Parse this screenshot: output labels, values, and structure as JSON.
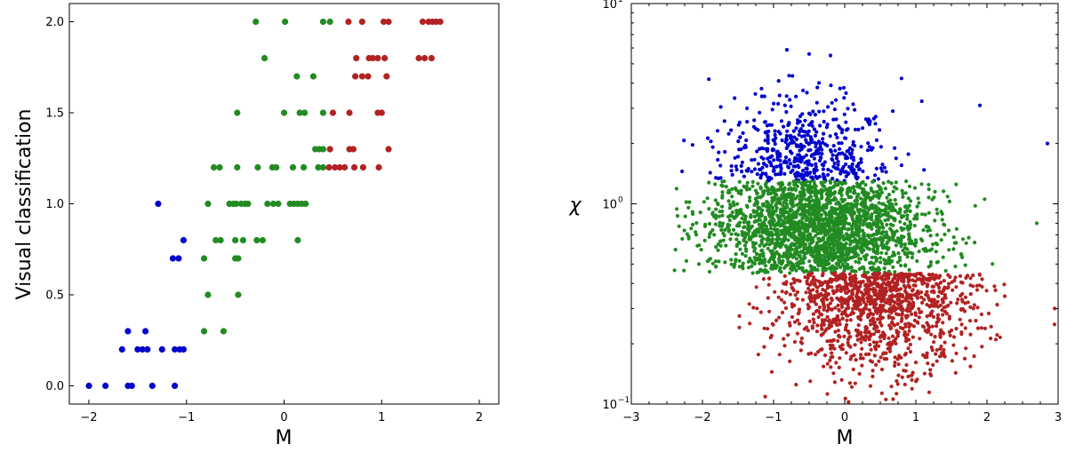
{
  "colors": {
    "blue": "#0000cc",
    "green": "#228b22",
    "red": "#b22222",
    "axes": "#000000",
    "background": "#ffffff"
  },
  "chart_data": [
    {
      "type": "scatter",
      "title": "",
      "xlabel": "M",
      "ylabel": "Visual classification",
      "xlim": [
        -2.2,
        2.2
      ],
      "ylim": [
        -0.1,
        2.1
      ],
      "xticks": [
        -2,
        -1,
        0,
        1,
        2
      ],
      "xtick_labels": [
        "−2",
        "−1",
        "0",
        "1",
        "2"
      ],
      "yticks": [
        0.0,
        0.5,
        1.0,
        1.5,
        2.0
      ],
      "ytick_labels": [
        "0.0",
        "0.5",
        "1.0",
        "1.5",
        "2.0"
      ],
      "grid": false,
      "legend": "none",
      "series": [
        {
          "color_key": "blue",
          "points": [
            [
              -2.0,
              0.0
            ],
            [
              -1.83,
              0.0
            ],
            [
              -1.6,
              0.0
            ],
            [
              -1.56,
              0.0
            ],
            [
              -1.35,
              0.0
            ],
            [
              -1.12,
              0.0
            ],
            [
              -1.66,
              0.2
            ],
            [
              -1.5,
              0.2
            ],
            [
              -1.45,
              0.2
            ],
            [
              -1.4,
              0.2
            ],
            [
              -1.25,
              0.2
            ],
            [
              -1.12,
              0.2
            ],
            [
              -1.07,
              0.2
            ],
            [
              -1.03,
              0.2
            ],
            [
              -1.6,
              0.3
            ],
            [
              -1.42,
              0.3
            ],
            [
              -1.14,
              0.7
            ],
            [
              -1.08,
              0.7
            ],
            [
              -1.03,
              0.8
            ],
            [
              -1.29,
              1.0
            ]
          ]
        },
        {
          "color_key": "green",
          "points": [
            [
              -0.82,
              0.3
            ],
            [
              -0.62,
              0.3
            ],
            [
              -0.78,
              0.5
            ],
            [
              -0.47,
              0.5
            ],
            [
              -0.82,
              0.7
            ],
            [
              -0.5,
              0.7
            ],
            [
              -0.47,
              0.7
            ],
            [
              -0.7,
              0.8
            ],
            [
              -0.65,
              0.8
            ],
            [
              -0.5,
              0.8
            ],
            [
              -0.42,
              0.8
            ],
            [
              -0.28,
              0.8
            ],
            [
              -0.22,
              0.8
            ],
            [
              0.14,
              0.8
            ],
            [
              -0.78,
              1.0
            ],
            [
              -0.56,
              1.0
            ],
            [
              -0.52,
              1.0
            ],
            [
              -0.49,
              1.0
            ],
            [
              -0.44,
              1.0
            ],
            [
              -0.4,
              1.0
            ],
            [
              -0.37,
              1.0
            ],
            [
              -0.17,
              1.0
            ],
            [
              -0.11,
              1.0
            ],
            [
              -0.06,
              1.0
            ],
            [
              0.06,
              1.0
            ],
            [
              0.1,
              1.0
            ],
            [
              0.14,
              1.0
            ],
            [
              0.18,
              1.0
            ],
            [
              0.22,
              1.0
            ],
            [
              -0.72,
              1.2
            ],
            [
              -0.66,
              1.2
            ],
            [
              -0.48,
              1.2
            ],
            [
              -0.27,
              1.2
            ],
            [
              -0.12,
              1.2
            ],
            [
              -0.08,
              1.2
            ],
            [
              0.09,
              1.2
            ],
            [
              0.2,
              1.2
            ],
            [
              0.35,
              1.2
            ],
            [
              0.4,
              1.2
            ],
            [
              0.32,
              1.3
            ],
            [
              0.36,
              1.3
            ],
            [
              0.4,
              1.3
            ],
            [
              -0.48,
              1.5
            ],
            [
              0.0,
              1.5
            ],
            [
              0.16,
              1.5
            ],
            [
              0.21,
              1.5
            ],
            [
              0.4,
              1.5
            ],
            [
              0.13,
              1.7
            ],
            [
              0.3,
              1.7
            ],
            [
              -0.2,
              1.8
            ],
            [
              -0.29,
              2.0
            ],
            [
              0.01,
              2.0
            ],
            [
              0.4,
              2.0
            ],
            [
              0.47,
              2.0
            ]
          ]
        },
        {
          "color_key": "red",
          "points": [
            [
              0.46,
              1.2
            ],
            [
              0.52,
              1.2
            ],
            [
              0.57,
              1.2
            ],
            [
              0.62,
              1.2
            ],
            [
              0.72,
              1.2
            ],
            [
              0.81,
              1.2
            ],
            [
              0.97,
              1.2
            ],
            [
              0.47,
              1.3
            ],
            [
              0.67,
              1.3
            ],
            [
              0.71,
              1.3
            ],
            [
              1.07,
              1.3
            ],
            [
              0.5,
              1.5
            ],
            [
              0.67,
              1.5
            ],
            [
              0.96,
              1.5
            ],
            [
              1.0,
              1.5
            ],
            [
              0.73,
              1.7
            ],
            [
              0.8,
              1.7
            ],
            [
              0.86,
              1.7
            ],
            [
              1.05,
              1.7
            ],
            [
              0.74,
              1.8
            ],
            [
              0.87,
              1.8
            ],
            [
              0.91,
              1.8
            ],
            [
              0.96,
              1.8
            ],
            [
              1.03,
              1.8
            ],
            [
              1.38,
              1.8
            ],
            [
              1.44,
              1.8
            ],
            [
              1.51,
              1.8
            ],
            [
              0.66,
              2.0
            ],
            [
              0.8,
              2.0
            ],
            [
              1.02,
              2.0
            ],
            [
              1.07,
              2.0
            ],
            [
              1.42,
              2.0
            ],
            [
              1.48,
              2.0
            ],
            [
              1.52,
              2.0
            ],
            [
              1.56,
              2.0
            ],
            [
              1.6,
              2.0
            ]
          ]
        }
      ]
    },
    {
      "type": "scatter",
      "title": "",
      "xlabel": "M",
      "ylabel": "χ",
      "xlim": [
        -3,
        3
      ],
      "ylim": [
        0.1,
        10
      ],
      "yscale": "log",
      "xticks": [
        -3,
        -2,
        -1,
        0,
        1,
        2,
        3
      ],
      "xtick_labels": [
        "−3",
        "−2",
        "−1",
        "0",
        "1",
        "2",
        "3"
      ],
      "yticks": [
        0.1,
        1,
        10
      ],
      "ytick_labels": [
        [
          "10",
          "−1"
        ],
        [
          "10",
          "0"
        ],
        [
          "10",
          "1"
        ]
      ],
      "grid": false,
      "legend": "none",
      "groups": [
        {
          "color_key": "blue",
          "chi_range": [
            1.3,
            6.0
          ],
          "approx_count": 500
        },
        {
          "color_key": "green",
          "chi_range": [
            0.45,
            1.3
          ],
          "approx_count": 2200
        },
        {
          "color_key": "red",
          "chi_range": [
            0.1,
            0.45
          ],
          "approx_count": 1200
        }
      ],
      "highlighted_points": [
        [
          -0.5,
          5.6
        ],
        [
          -0.2,
          5.5
        ],
        [
          1.9,
          3.1
        ],
        [
          2.85,
          2.0
        ],
        [
          -2.35,
          0.87
        ],
        [
          -2.05,
          0.5
        ],
        [
          2.7,
          0.8
        ],
        [
          2.95,
          0.3
        ],
        [
          2.95,
          0.25
        ]
      ]
    }
  ]
}
